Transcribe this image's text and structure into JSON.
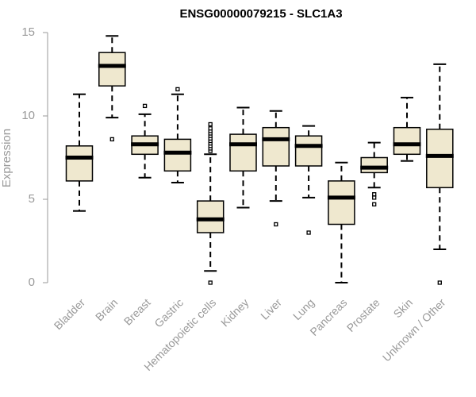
{
  "chart_data": {
    "type": "boxplot",
    "title": "ENSG00000079215 - SLC1A3",
    "ylabel": "Expression",
    "xlabel": "",
    "ylim": [
      0,
      15
    ],
    "yticks": [
      0,
      5,
      10,
      15
    ],
    "box_fill": "#efe8cf",
    "categories": [
      "Bladder",
      "Brain",
      "Breast",
      "Gastric",
      "Hematopoietic cells",
      "Kidney",
      "Liver",
      "Lung",
      "Pancreas",
      "Prostate",
      "Skin",
      "Unknown / Other"
    ],
    "boxes": [
      {
        "whisker_low": 4.3,
        "q1": 6.1,
        "median": 7.5,
        "q3": 8.2,
        "whisker_high": 11.3,
        "outliers": []
      },
      {
        "whisker_low": 9.9,
        "q1": 11.8,
        "median": 13.0,
        "q3": 13.8,
        "whisker_high": 14.8,
        "outliers": [
          8.6
        ]
      },
      {
        "whisker_low": 6.3,
        "q1": 7.7,
        "median": 8.3,
        "q3": 8.8,
        "whisker_high": 10.1,
        "outliers": [
          10.6
        ]
      },
      {
        "whisker_low": 6.0,
        "q1": 6.7,
        "median": 7.8,
        "q3": 8.6,
        "whisker_high": 11.3,
        "outliers": [
          11.6
        ]
      },
      {
        "whisker_low": 0.7,
        "q1": 3.0,
        "median": 3.8,
        "q3": 4.9,
        "whisker_high": 7.7,
        "outliers": [
          0.0,
          7.9,
          8.05,
          8.2,
          8.35,
          8.5,
          8.65,
          8.8,
          8.95,
          9.1,
          9.25,
          9.5
        ]
      },
      {
        "whisker_low": 4.5,
        "q1": 6.7,
        "median": 8.3,
        "q3": 8.9,
        "whisker_high": 10.5,
        "outliers": []
      },
      {
        "whisker_low": 4.9,
        "q1": 7.0,
        "median": 8.6,
        "q3": 9.3,
        "whisker_high": 10.3,
        "outliers": [
          3.5
        ]
      },
      {
        "whisker_low": 5.1,
        "q1": 7.0,
        "median": 8.2,
        "q3": 8.8,
        "whisker_high": 9.4,
        "outliers": [
          3.0
        ]
      },
      {
        "whisker_low": 0.0,
        "q1": 3.5,
        "median": 5.1,
        "q3": 6.1,
        "whisker_high": 7.2,
        "outliers": []
      },
      {
        "whisker_low": 5.7,
        "q1": 6.6,
        "median": 6.9,
        "q3": 7.5,
        "whisker_high": 8.4,
        "outliers": [
          4.7,
          5.1,
          5.3
        ]
      },
      {
        "whisker_low": 7.3,
        "q1": 7.7,
        "median": 8.3,
        "q3": 9.3,
        "whisker_high": 11.1,
        "outliers": []
      },
      {
        "whisker_low": 2.0,
        "q1": 5.7,
        "median": 7.6,
        "q3": 9.2,
        "whisker_high": 13.1,
        "outliers": [
          0.0
        ]
      }
    ],
    "grid": false,
    "legend": "none"
  }
}
